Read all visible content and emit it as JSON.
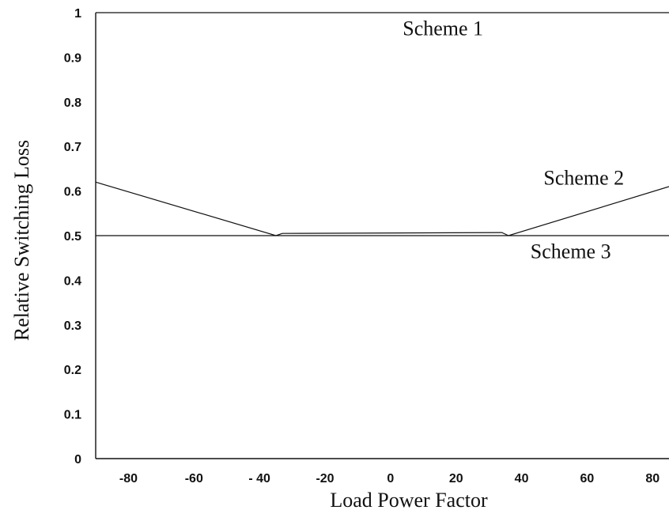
{
  "chart_data": {
    "type": "line",
    "xlabel": "Load Power Factor",
    "ylabel": "Relative Switching Loss",
    "xlim": [
      -90,
      85
    ],
    "ylim": [
      0,
      1
    ],
    "x_ticks": [
      -80,
      -60,
      -40,
      -20,
      0,
      20,
      40,
      60,
      80
    ],
    "x_tick_labels": [
      "-80",
      "-60",
      "- 40",
      "-20",
      "0",
      "20",
      "40",
      "60",
      "80"
    ],
    "y_ticks": [
      0,
      0.1,
      0.2,
      0.3,
      0.4,
      0.5,
      0.6,
      0.7,
      0.8,
      0.9,
      1
    ],
    "y_tick_labels": [
      "0",
      "0.1",
      "0.2",
      "0.3",
      "0.4",
      "0.5",
      "0.6",
      "0.7",
      "0.8",
      "0.9",
      "1"
    ],
    "grid": false,
    "legend": "none",
    "series": [
      {
        "key": "scheme-1",
        "points": [
          [
            -90,
            1.0
          ],
          [
            85,
            1.0
          ]
        ]
      },
      {
        "key": "scheme-2",
        "points": [
          [
            -90,
            0.62
          ],
          [
            -35,
            0.5
          ],
          [
            -33,
            0.505
          ],
          [
            34,
            0.507
          ],
          [
            36,
            0.5
          ],
          [
            85,
            0.61
          ]
        ]
      },
      {
        "key": "scheme-3",
        "points": [
          [
            -90,
            0.5
          ],
          [
            85,
            0.5
          ]
        ]
      }
    ],
    "annotations": [
      {
        "key": "scheme-1",
        "text": "Scheme 1",
        "x": 16,
        "y": 0.965
      },
      {
        "key": "scheme-2",
        "text": "Scheme 2",
        "x": 59,
        "y": 0.63
      },
      {
        "key": "scheme-3",
        "text": "Scheme 3",
        "x": 55,
        "y": 0.465
      }
    ]
  }
}
